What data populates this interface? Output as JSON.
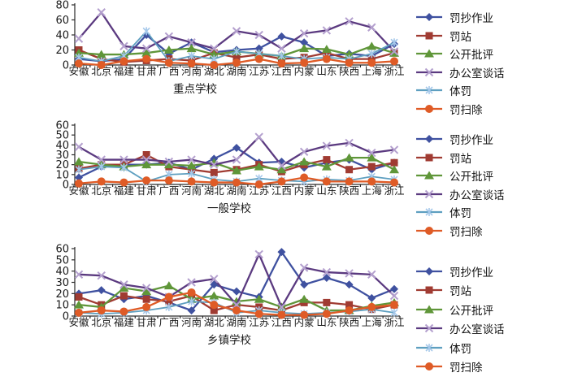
{
  "figure_title": "",
  "categories": [
    "安徽",
    "北京",
    "福建",
    "甘肃",
    "广西",
    "河南",
    "湖北",
    "湖南",
    "江苏",
    "江西",
    "内蒙",
    "山东",
    "陕西",
    "上海",
    "浙江"
  ],
  "colors": {
    "blue": "#3F51A0",
    "brick": "#A03B32",
    "green": "#5F9639",
    "purple_line": "#5B3A80",
    "purple_marker": "#B4A0CE",
    "teal_line": "#5E9FC0",
    "teal_marker": "#A5C8EA",
    "orange": "#DF5B26",
    "axis": "#2b2b2b",
    "text": "#1a1a1a"
  },
  "chart_data": [
    {
      "type": "line",
      "title": "重点学校",
      "ylim": [
        0,
        80
      ],
      "yticks": [
        0,
        20,
        40,
        60,
        80
      ],
      "grid": false,
      "legend_position": "right",
      "categories": [
        "安徽",
        "北京",
        "福建",
        "甘肃",
        "广西",
        "河南",
        "湖北",
        "湖南",
        "江苏",
        "江西",
        "内蒙",
        "山东",
        "陕西",
        "上海",
        "浙江"
      ],
      "series": [
        {
          "name": "罚抄作业",
          "marker": "diamond",
          "color": "#3F51A0",
          "marker_color": "#3F51A0",
          "values": [
            8,
            5,
            8,
            40,
            15,
            30,
            17,
            20,
            22,
            38,
            30,
            12,
            15,
            12,
            28
          ]
        },
        {
          "name": "罚站",
          "marker": "square",
          "color": "#A03B32",
          "marker_color": "#A03B32",
          "values": [
            20,
            8,
            4,
            6,
            8,
            6,
            16,
            10,
            14,
            8,
            10,
            16,
            8,
            8,
            16
          ]
        },
        {
          "name": "公开批评",
          "marker": "triangle",
          "color": "#5F9639",
          "marker_color": "#5F9639",
          "values": [
            16,
            14,
            14,
            16,
            20,
            22,
            14,
            18,
            15,
            12,
            22,
            21,
            14,
            25,
            16
          ]
        },
        {
          "name": "办公室谈话",
          "marker": "x",
          "color": "#5B3A80",
          "marker_color": "#B4A0CE",
          "values": [
            35,
            70,
            25,
            22,
            38,
            30,
            22,
            45,
            40,
            22,
            42,
            46,
            58,
            50,
            18
          ]
        },
        {
          "name": "体罚",
          "marker": "star",
          "color": "#5E9FC0",
          "marker_color": "#A5C8EA",
          "values": [
            10,
            5,
            12,
            45,
            5,
            12,
            8,
            18,
            15,
            12,
            8,
            10,
            8,
            15,
            30
          ]
        },
        {
          "name": "罚扫除",
          "marker": "circle",
          "color": "#DF5B26",
          "marker_color": "#DF5B26",
          "values": [
            2,
            0,
            5,
            8,
            3,
            2,
            0,
            3,
            8,
            2,
            3,
            8,
            3,
            3,
            5
          ]
        }
      ]
    },
    {
      "type": "line",
      "title": "一般学校",
      "ylim": [
        0,
        60
      ],
      "yticks": [
        0,
        10,
        20,
        30,
        40,
        50,
        60
      ],
      "grid": false,
      "legend_position": "right",
      "categories": [
        "安徽",
        "北京",
        "福建",
        "甘肃",
        "广西",
        "河南",
        "湖北",
        "湖南",
        "江苏",
        "江西",
        "内蒙",
        "山东",
        "陕西",
        "上海",
        "浙江"
      ],
      "series": [
        {
          "name": "罚抄作业",
          "marker": "diamond",
          "color": "#3F51A0",
          "marker_color": "#3F51A0",
          "values": [
            7,
            18,
            20,
            20,
            22,
            15,
            26,
            37,
            22,
            23,
            17,
            22,
            25,
            15,
            22
          ]
        },
        {
          "name": "罚站",
          "marker": "square",
          "color": "#A03B32",
          "marker_color": "#A03B32",
          "values": [
            16,
            20,
            20,
            30,
            18,
            15,
            12,
            15,
            20,
            13,
            20,
            25,
            15,
            18,
            22
          ]
        },
        {
          "name": "公开批评",
          "marker": "triangle",
          "color": "#5F9639",
          "marker_color": "#5F9639",
          "values": [
            23,
            20,
            18,
            20,
            20,
            19,
            22,
            14,
            18,
            15,
            23,
            18,
            27,
            27,
            15
          ]
        },
        {
          "name": "办公室谈话",
          "marker": "x",
          "color": "#5B3A80",
          "marker_color": "#B4A0CE",
          "values": [
            38,
            25,
            25,
            25,
            23,
            25,
            20,
            25,
            48,
            19,
            33,
            39,
            42,
            32,
            35
          ]
        },
        {
          "name": "体罚",
          "marker": "star",
          "color": "#5E9FC0",
          "marker_color": "#A5C8EA",
          "values": [
            15,
            18,
            17,
            3,
            10,
            11,
            5,
            3,
            6,
            4,
            3,
            5,
            4,
            8,
            5
          ]
        },
        {
          "name": "罚扫除",
          "marker": "circle",
          "color": "#DF5B26",
          "marker_color": "#DF5B26",
          "values": [
            1,
            3,
            2,
            4,
            4,
            3,
            2,
            2,
            0,
            3,
            7,
            3,
            3,
            3,
            2
          ]
        }
      ]
    },
    {
      "type": "line",
      "title": "乡镇学校",
      "ylim": [
        0,
        60
      ],
      "yticks": [
        0,
        10,
        20,
        30,
        40,
        50,
        60
      ],
      "grid": false,
      "legend_position": "right",
      "categories": [
        "安徽",
        "北京",
        "福建",
        "甘肃",
        "广西",
        "河南",
        "湖北",
        "湖南",
        "江苏",
        "江西",
        "内蒙",
        "山东",
        "陕西",
        "上海",
        "浙江"
      ],
      "series": [
        {
          "name": "罚抄作业",
          "marker": "diamond",
          "color": "#3F51A0",
          "marker_color": "#3F51A0",
          "values": [
            20,
            23,
            15,
            18,
            12,
            5,
            28,
            22,
            17,
            57,
            28,
            34,
            28,
            16,
            24
          ]
        },
        {
          "name": "罚站",
          "marker": "square",
          "color": "#A03B32",
          "marker_color": "#A03B32",
          "values": [
            17,
            10,
            18,
            15,
            13,
            18,
            5,
            10,
            8,
            5,
            12,
            12,
            10,
            6,
            10
          ]
        },
        {
          "name": "公开批评",
          "marker": "triangle",
          "color": "#5F9639",
          "marker_color": "#5F9639",
          "values": [
            10,
            8,
            25,
            22,
            27,
            15,
            18,
            13,
            15,
            8,
            15,
            5,
            5,
            9,
            12
          ]
        },
        {
          "name": "办公室谈话",
          "marker": "x",
          "color": "#5B3A80",
          "marker_color": "#B4A0CE",
          "values": [
            37,
            36,
            28,
            25,
            17,
            30,
            33,
            10,
            55,
            8,
            43,
            39,
            38,
            37,
            18
          ]
        },
        {
          "name": "体罚",
          "marker": "star",
          "color": "#5E9FC0",
          "marker_color": "#A5C8EA",
          "values": [
            3,
            2,
            3,
            5,
            8,
            13,
            12,
            3,
            5,
            3,
            2,
            3,
            4,
            6,
            3
          ]
        },
        {
          "name": "罚扫除",
          "marker": "circle",
          "color": "#DF5B26",
          "marker_color": "#DF5B26",
          "values": [
            3,
            5,
            4,
            8,
            17,
            21,
            10,
            5,
            2,
            1,
            1,
            2,
            5,
            8,
            10
          ]
        }
      ]
    }
  ]
}
